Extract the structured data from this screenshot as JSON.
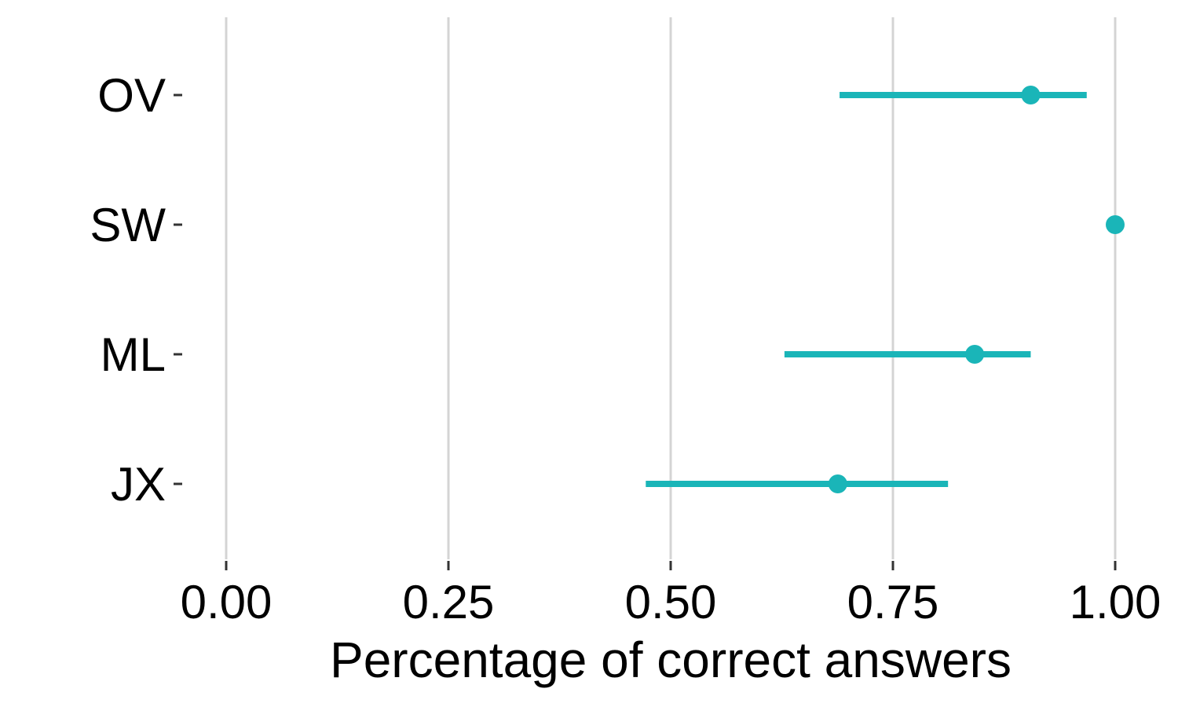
{
  "chart_data": {
    "type": "scatter",
    "subtype": "pointrange",
    "orientation": "horizontal",
    "title": "",
    "xlabel": "Percentage of correct answers",
    "ylabel": "",
    "xlim": [
      0,
      1
    ],
    "x_ticks": [
      0,
      0.25,
      0.5,
      0.75,
      1
    ],
    "x_tick_labels": [
      "0.00",
      "0.25",
      "0.50",
      "0.75",
      "1.00"
    ],
    "categories": [
      "OV",
      "SW",
      "ML",
      "JX"
    ],
    "series": [
      {
        "values": [
          0.905,
          1.0,
          0.842,
          0.688
        ],
        "lower": [
          0.69,
          1.0,
          0.628,
          0.472
        ],
        "upper": [
          0.968,
          1.0,
          0.905,
          0.812
        ]
      }
    ],
    "color": "#1ab5b8",
    "grid": "vertical major lines only",
    "legend": "none"
  }
}
